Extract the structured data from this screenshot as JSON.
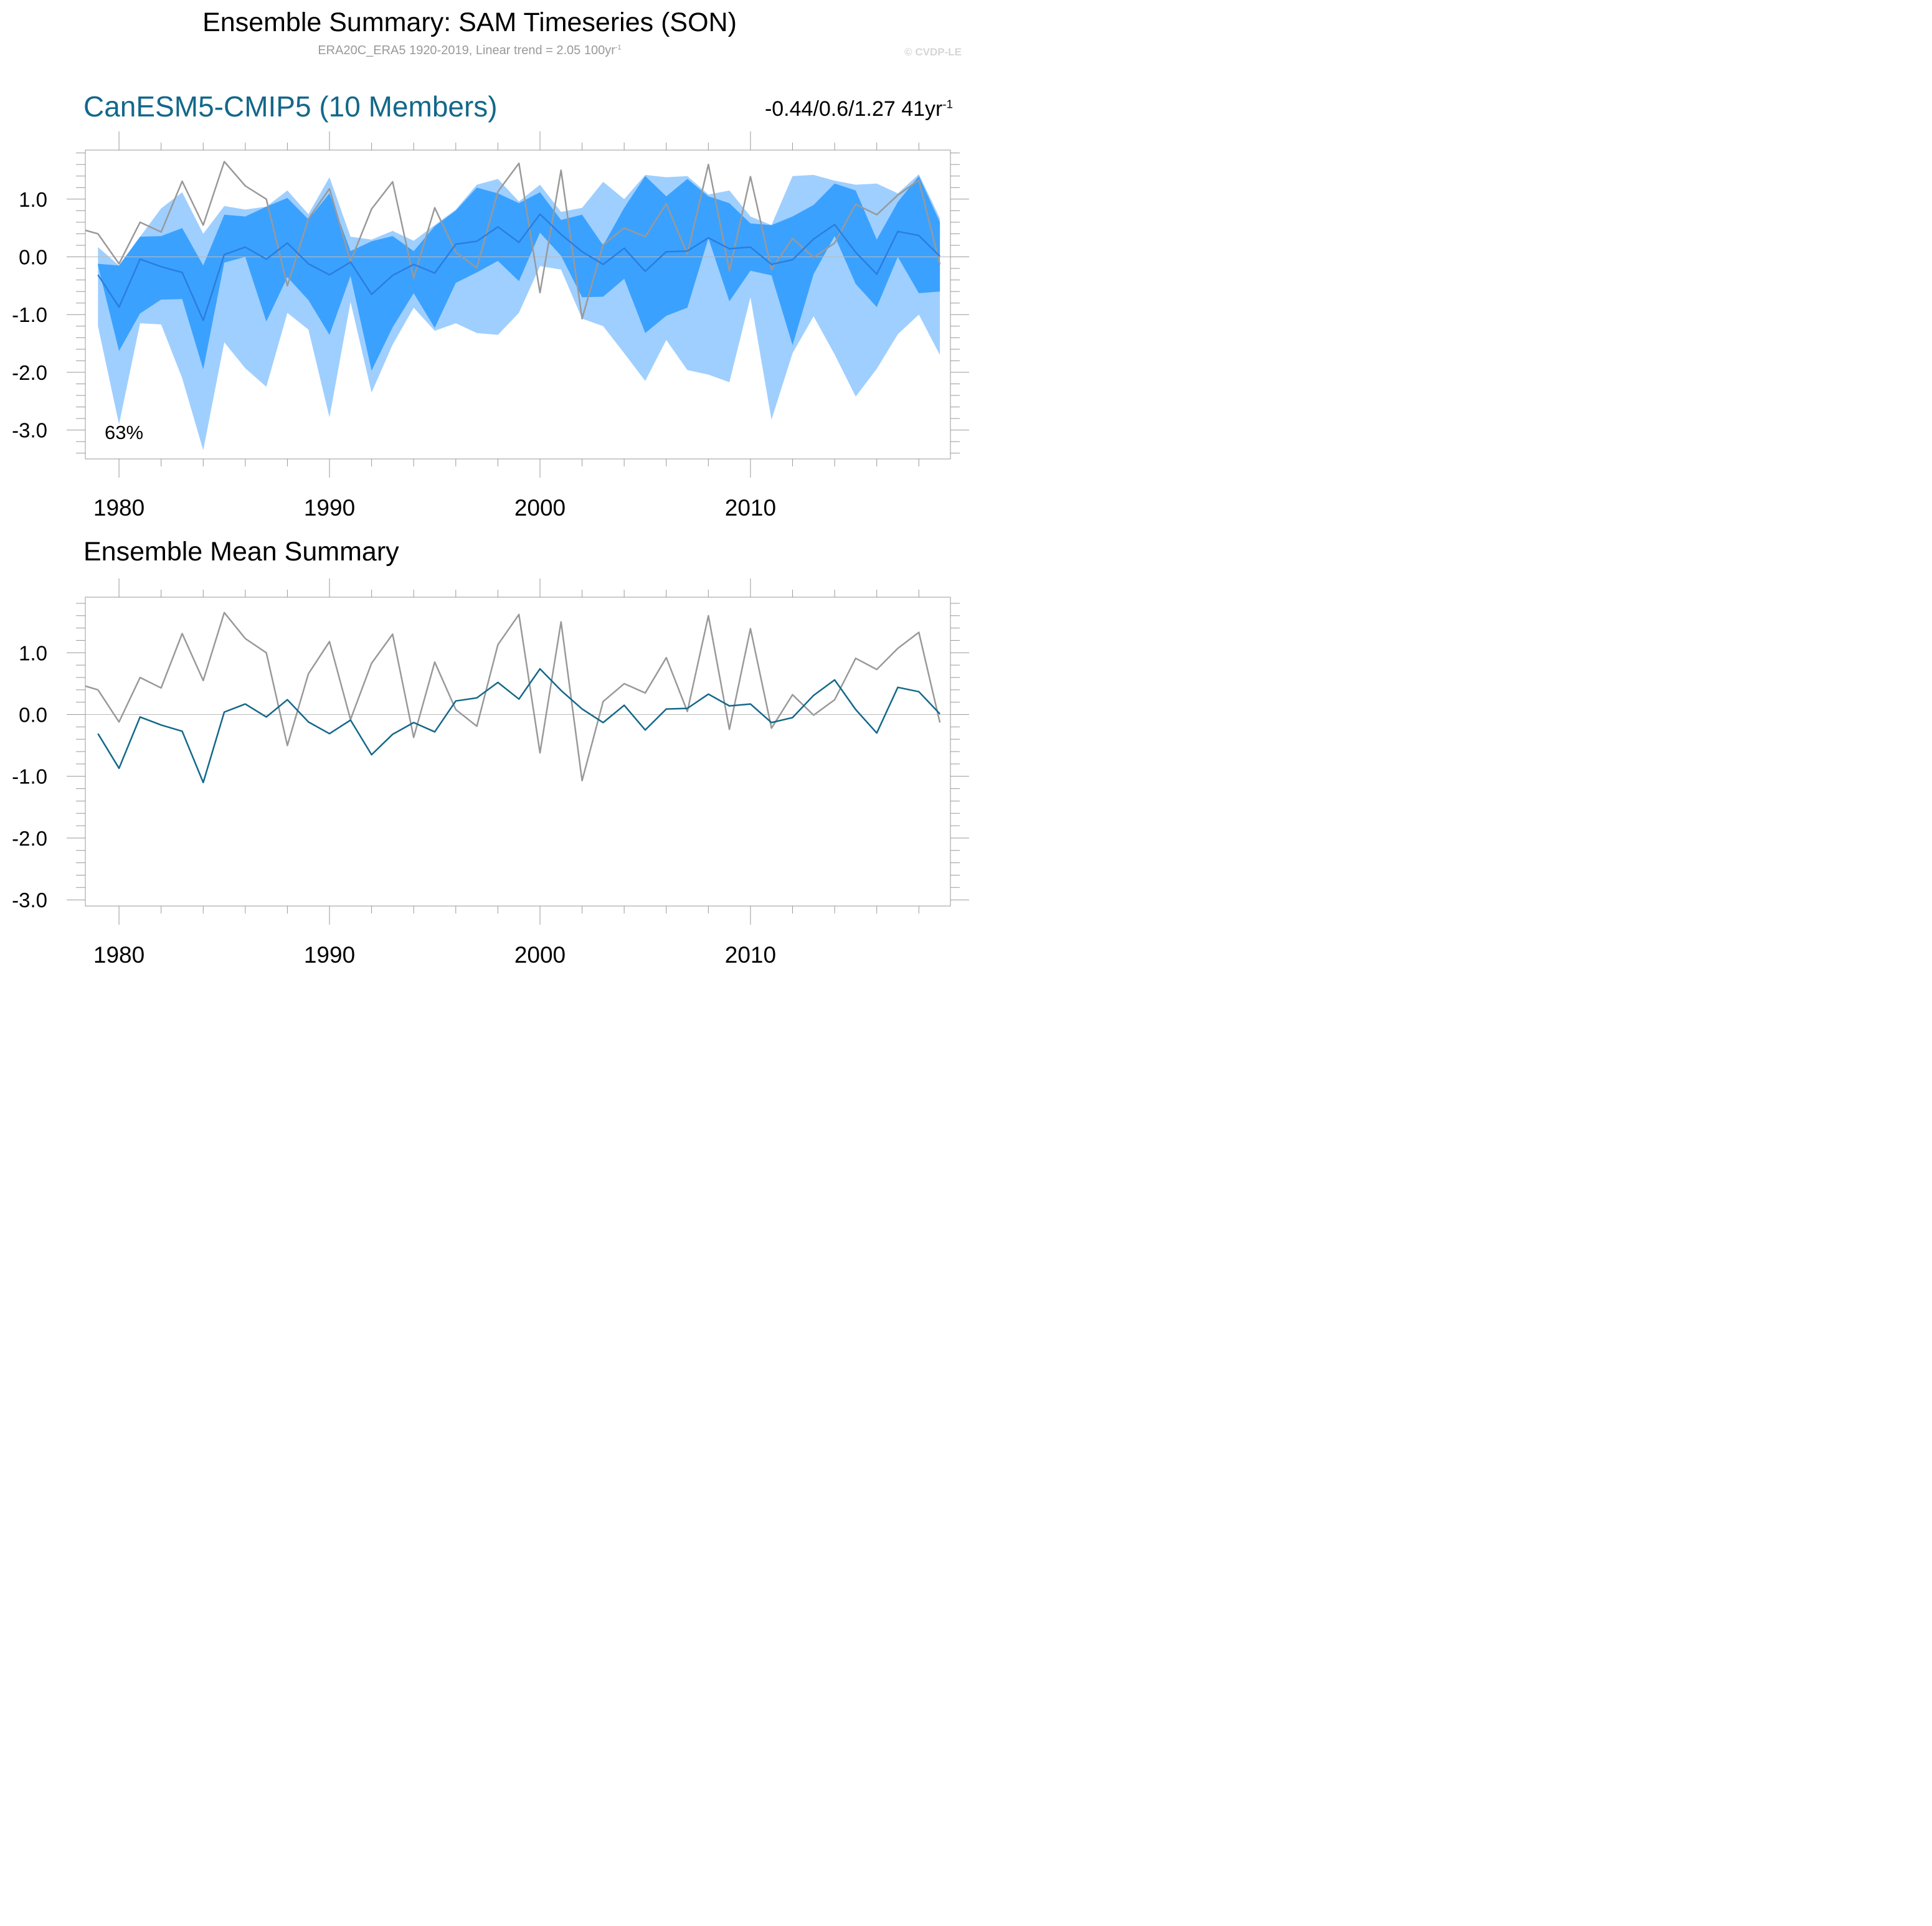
{
  "title": "Ensemble Summary: SAM Timeseries (SON)",
  "subtitle": {
    "text": "ERA20C_ERA5 1920-2019, Linear trend = 2.05 100yr",
    "sup": "-1"
  },
  "copyright": "© CVDP-LE",
  "colors": {
    "ensemble_mean": "#13688a",
    "observations": "#999999",
    "band_inner": "#3ba1fe",
    "band_outer": "#9fcfff",
    "zero_line": "#bbbbbb"
  },
  "chart_data": [
    {
      "type": "area",
      "title": "CanESM5-CMIP5 (10 Members)",
      "annotation_top_right": {
        "text": "-0.44/0.6/1.27 41yr",
        "sup": "-1"
      },
      "annotation_percent": "63%",
      "xlim": [
        1978.4,
        2019.5
      ],
      "ylim": [
        -3.5,
        1.85
      ],
      "xticks": [
        1980,
        1990,
        2000,
        2010
      ],
      "xtick_labels": [
        "1980",
        "1990",
        "2000",
        "2010"
      ],
      "yticks": [
        1.0,
        0.0,
        -1.0,
        -2.0,
        -3.0
      ],
      "ytick_labels": [
        "1.0",
        "0.0",
        "-1.0",
        "-2.0",
        "-3.0"
      ],
      "years": [
        1979,
        1980,
        1981,
        1982,
        1983,
        1984,
        1985,
        1986,
        1987,
        1988,
        1989,
        1990,
        1991,
        1992,
        1993,
        1994,
        1995,
        1996,
        1997,
        1998,
        1999,
        2000,
        2001,
        2002,
        2003,
        2004,
        2005,
        2006,
        2007,
        2008,
        2009,
        2010,
        2011,
        2012,
        2013,
        2014,
        2015,
        2016,
        2017,
        2018,
        2019
      ],
      "series": [
        {
          "name": "ensemble_min",
          "values": [
            -1.2,
            -2.9,
            -1.15,
            -1.17,
            -2.1,
            -3.35,
            -1.48,
            -1.93,
            -2.25,
            -0.97,
            -1.26,
            -2.78,
            -0.78,
            -2.35,
            -1.52,
            -0.88,
            -1.28,
            -1.15,
            -1.32,
            -1.35,
            -0.97,
            -0.16,
            -0.22,
            -1.07,
            -1.2,
            -1.67,
            -2.15,
            -1.44,
            -1.96,
            -2.04,
            -2.17,
            -0.7,
            -2.82,
            -1.67,
            -1.03,
            -1.69,
            -2.42,
            -1.94,
            -1.34,
            -1.0,
            -1.7
          ]
        },
        {
          "name": "p25",
          "values": [
            -0.15,
            -1.63,
            -0.98,
            -0.74,
            -0.73,
            -1.95,
            -0.1,
            0.0,
            -1.12,
            -0.35,
            -0.75,
            -1.35,
            -0.33,
            -1.97,
            -1.22,
            -0.63,
            -1.23,
            -0.45,
            -0.27,
            -0.07,
            -0.42,
            0.42,
            0.02,
            -0.7,
            -0.69,
            -0.38,
            -1.32,
            -1.02,
            -0.88,
            0.32,
            -0.77,
            -0.24,
            -0.32,
            -1.53,
            -0.3,
            0.36,
            -0.47,
            -0.87,
            0.0,
            -0.63,
            -0.6
          ]
        },
        {
          "name": "ensemble_mean",
          "values": [
            -0.31,
            -0.87,
            -0.04,
            -0.17,
            -0.27,
            -1.1,
            0.04,
            0.17,
            -0.04,
            0.24,
            -0.12,
            -0.31,
            -0.09,
            -0.65,
            -0.32,
            -0.13,
            -0.28,
            0.22,
            0.27,
            0.52,
            0.25,
            0.74,
            0.39,
            0.09,
            -0.13,
            0.15,
            -0.25,
            0.09,
            0.1,
            0.33,
            0.14,
            0.17,
            -0.13,
            -0.05,
            0.31,
            0.56,
            0.08,
            -0.3,
            0.44,
            0.37,
            0.01
          ]
        },
        {
          "name": "p75",
          "values": [
            -0.12,
            -0.15,
            0.35,
            0.36,
            0.5,
            -0.15,
            0.73,
            0.7,
            0.87,
            1.02,
            0.65,
            1.1,
            0.1,
            0.27,
            0.36,
            0.1,
            0.53,
            0.8,
            1.2,
            1.1,
            0.93,
            1.12,
            0.64,
            0.73,
            0.2,
            0.85,
            1.4,
            1.05,
            1.35,
            1.05,
            0.93,
            0.58,
            0.55,
            0.7,
            0.9,
            1.27,
            1.15,
            0.3,
            0.95,
            1.4,
            0.6
          ]
        },
        {
          "name": "ensemble_max",
          "values": [
            0.17,
            -0.15,
            0.35,
            0.84,
            1.12,
            0.4,
            0.88,
            0.82,
            0.87,
            1.15,
            0.74,
            1.38,
            0.35,
            0.3,
            0.45,
            0.28,
            0.55,
            0.82,
            1.25,
            1.35,
            0.96,
            1.25,
            0.78,
            0.85,
            1.3,
            1.0,
            1.42,
            1.38,
            1.4,
            1.08,
            1.15,
            0.7,
            0.55,
            1.4,
            1.42,
            1.32,
            1.25,
            1.27,
            1.1,
            1.43,
            0.67
          ]
        },
        {
          "name": "observations",
          "values": [
            0.4,
            -0.12,
            0.6,
            0.43,
            1.31,
            0.55,
            1.65,
            1.23,
            1.0,
            -0.5,
            0.66,
            1.18,
            -0.08,
            0.83,
            1.3,
            -0.37,
            0.85,
            0.08,
            -0.19,
            1.13,
            1.62,
            -0.62,
            1.5,
            -1.07,
            0.21,
            0.5,
            0.35,
            0.92,
            0.05,
            1.6,
            -0.24,
            1.39,
            -0.22,
            0.32,
            -0.01,
            0.24,
            0.91,
            0.73,
            1.07,
            1.33,
            -0.13
          ]
        }
      ]
    },
    {
      "type": "line",
      "title": "Ensemble Mean Summary",
      "xlim": [
        1978.4,
        2019.5
      ],
      "ylim": [
        -3.1,
        1.9
      ],
      "xticks": [
        1980,
        1990,
        2000,
        2010
      ],
      "xtick_labels": [
        "1980",
        "1990",
        "2000",
        "2010"
      ],
      "yticks": [
        1.0,
        0.0,
        -1.0,
        -2.0,
        -3.0
      ],
      "ytick_labels": [
        "1.0",
        "0.0",
        "-1.0",
        "-2.0",
        "-3.0"
      ],
      "series_ref": [
        "ensemble_mean",
        "observations"
      ]
    }
  ]
}
